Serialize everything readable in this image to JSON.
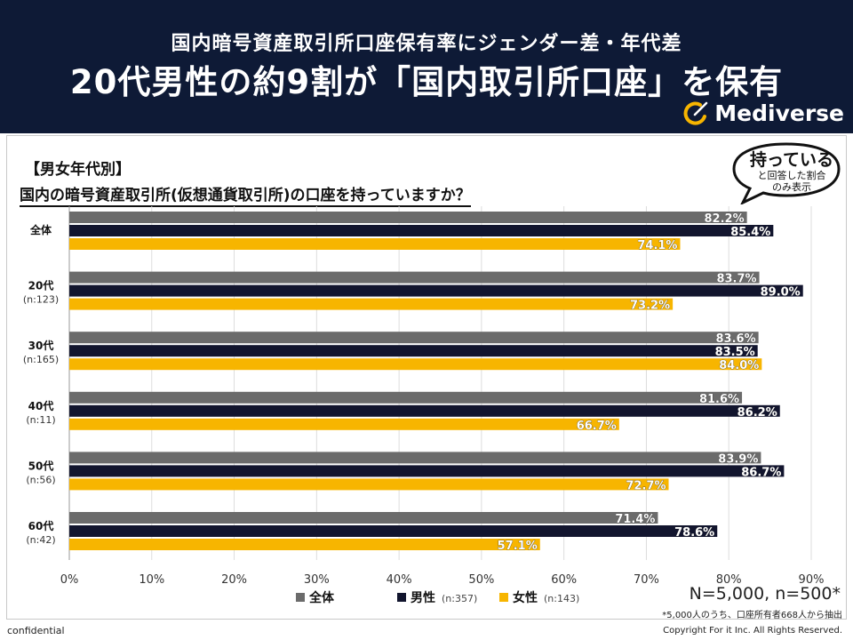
{
  "header": {
    "subtitle": "国内暗号資産取引所口座保有率にジェンダー差・年代差",
    "title": "20代男性の約9割が「国内取引所口座」を保有",
    "logo_text": "Mediverse",
    "background_color": "#0e1a36"
  },
  "section_tag": "【男女年代別】",
  "question": "国内の暗号資産取引所(仮想通貨取引所)の口座を持っていますか？",
  "bubble": {
    "main": "持っている",
    "note_line1": "と回答した割合",
    "note_line2": "のみ表示"
  },
  "chart_data": {
    "type": "bar",
    "orientation": "horizontal",
    "categories": [
      "全体",
      "20代",
      "30代",
      "40代",
      "50代",
      "60代"
    ],
    "category_notes": [
      "",
      "(n:123)",
      "(n:165)",
      "(n:11)",
      "(n:56)",
      "(n:42)"
    ],
    "series": [
      {
        "name": "全体",
        "note": "",
        "color": "#6b6b6b",
        "values": [
          82.2,
          83.7,
          83.6,
          81.6,
          83.9,
          71.4
        ]
      },
      {
        "name": "男性",
        "note": "(n:357)",
        "color": "#12152e",
        "values": [
          85.4,
          89.0,
          83.5,
          86.2,
          86.7,
          78.6
        ]
      },
      {
        "name": "女性",
        "note": "(n:143)",
        "color": "#f7b500",
        "values": [
          74.1,
          73.2,
          84.0,
          66.7,
          72.7,
          57.1
        ]
      }
    ],
    "value_labels": [
      [
        "82.2%",
        "83.7%",
        "83.6%",
        "81.6%",
        "83.9%",
        "71.4%"
      ],
      [
        "85.4%",
        "89.0%",
        "83.5%",
        "86.2%",
        "86.7%",
        "78.6%"
      ],
      [
        "74.1%",
        "73.2%",
        "84.0%",
        "66.7%",
        "72.7%",
        "57.1%"
      ]
    ],
    "xlim": [
      0,
      90
    ],
    "xticks": [
      "0%",
      "10%",
      "20%",
      "30%",
      "40%",
      "50%",
      "60%",
      "70%",
      "80%",
      "90%"
    ],
    "grid": true,
    "legend_position": "bottom"
  },
  "footer": {
    "sample_size": "N=5,000, n=500*",
    "sample_note": "*5,000人のうち、口座所有者668人から抽出",
    "confidential": "confidential",
    "copyright": "Copyright For it Inc. All Rights Reserved."
  }
}
